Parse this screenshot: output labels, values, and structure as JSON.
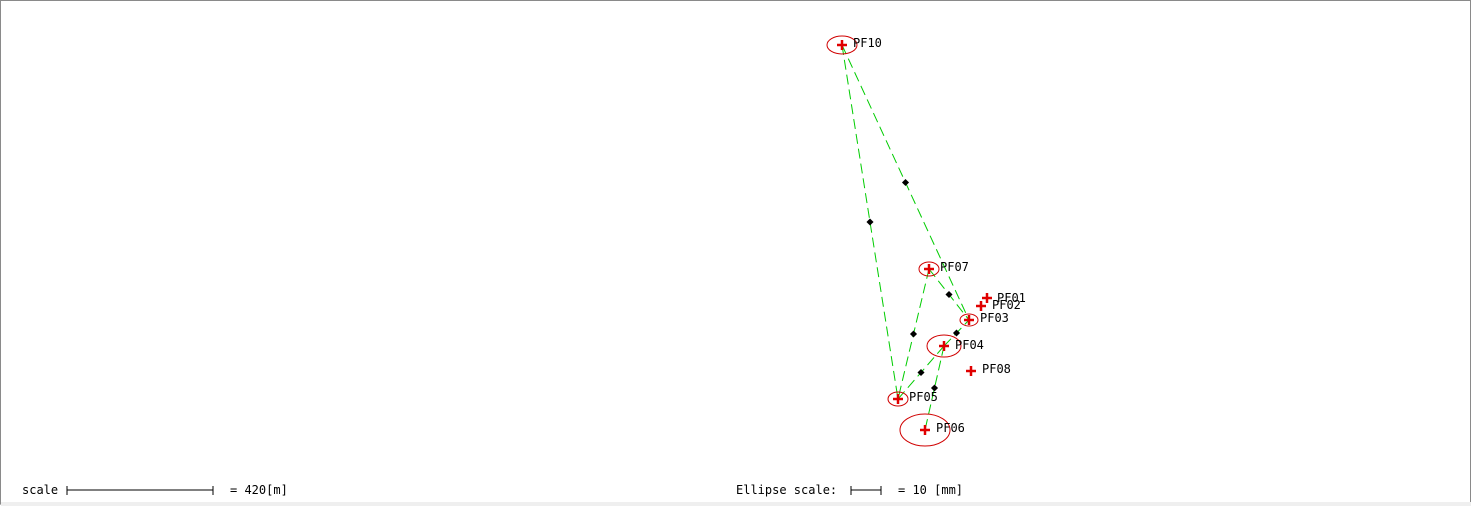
{
  "points": [
    {
      "id": "PF10",
      "label": "PF10",
      "ellipse": true
    },
    {
      "id": "PF07",
      "label": "PF07",
      "ellipse": true
    },
    {
      "id": "PF01",
      "label": "PF01",
      "ellipse": false
    },
    {
      "id": "PF02",
      "label": "PF02",
      "ellipse": false
    },
    {
      "id": "PF03",
      "label": "PF03",
      "ellipse": true
    },
    {
      "id": "PF04",
      "label": "PF04",
      "ellipse": true
    },
    {
      "id": "PF08",
      "label": "PF08",
      "ellipse": false
    },
    {
      "id": "PF05",
      "label": "PF05",
      "ellipse": true
    },
    {
      "id": "PF06",
      "label": "PF06",
      "ellipse": true
    }
  ],
  "observations": [
    {
      "from": "PF10",
      "to": "PF05"
    },
    {
      "from": "PF10",
      "to": "PF03"
    },
    {
      "from": "PF07",
      "to": "PF03"
    },
    {
      "from": "PF07",
      "to": "PF05"
    },
    {
      "from": "PF05",
      "to": "PF04"
    },
    {
      "from": "PF04",
      "to": "PF03"
    },
    {
      "from": "PF04",
      "to": "PF06"
    }
  ],
  "scale_bar": {
    "label": "scale",
    "value_text": "= 420[m]"
  },
  "ellipse_scale": {
    "label": "Ellipse scale:",
    "value_text": "= 10 [mm]"
  },
  "colors": {
    "point_marker": "#e00000",
    "ellipse": "#d00000",
    "observation_line": "#00cc00",
    "midpoint_marker": "#000000",
    "scale_bar": "#000000"
  }
}
